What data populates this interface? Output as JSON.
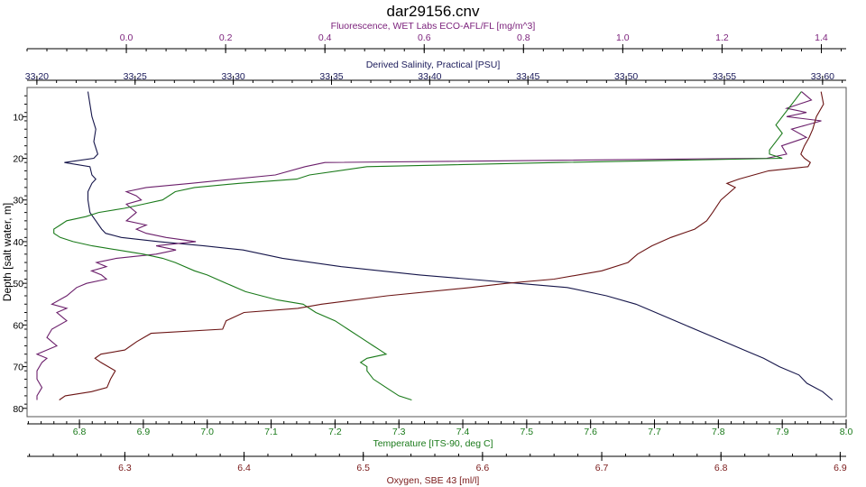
{
  "chart_data": {
    "type": "line",
    "title": "dar29156.cnv",
    "y_axis": {
      "label": "Depth [salt water, m]",
      "range": [
        3,
        82
      ],
      "ticks": [
        10,
        20,
        30,
        40,
        50,
        60,
        70,
        80
      ],
      "inverted": true,
      "color": "#000000"
    },
    "x_axes": [
      {
        "id": "fluor",
        "position": "top-1",
        "label": "Fluorescence, WET Labs ECO-AFL/FL [mg/m^3]",
        "color": "#7a1f7a",
        "range": [
          -0.2,
          1.45
        ],
        "ticks": [
          "0.0",
          "0.2",
          "0.4",
          "0.6",
          "0.8",
          "1.0",
          "1.2",
          "1.4"
        ]
      },
      {
        "id": "sal",
        "position": "top-2",
        "label": "Derived Salinity, Practical [PSU]",
        "color": "#1a1a5a",
        "range": [
          33.195,
          33.612
        ],
        "ticks": [
          "33.20",
          "33.25",
          "33.30",
          "33.35",
          "33.40",
          "33.45",
          "33.50",
          "33.55",
          "33.60"
        ]
      },
      {
        "id": "temp",
        "position": "bottom-1",
        "label": "Temperature [ITS-90, deg C]",
        "color": "#1a7a1a",
        "range": [
          6.718,
          8.0
        ],
        "ticks": [
          "6.8",
          "6.9",
          "7.0",
          "7.1",
          "7.2",
          "7.3",
          "7.4",
          "7.5",
          "7.6",
          "7.7",
          "7.8",
          "7.9",
          "8.0"
        ]
      },
      {
        "id": "oxy",
        "position": "bottom-2",
        "label": "Oxygen, SBE 43 [ml/l]",
        "color": "#7a1a1a",
        "range": [
          6.218,
          6.905
        ],
        "ticks": [
          "6.3",
          "6.4",
          "6.5",
          "6.6",
          "6.7",
          "6.8",
          "6.9"
        ]
      }
    ],
    "grid": false,
    "legend": "none",
    "series": [
      {
        "axis": "sal",
        "color": "#15154a",
        "points": [
          [
            4,
            33.226
          ],
          [
            7,
            33.227
          ],
          [
            10,
            33.228
          ],
          [
            13,
            33.23
          ],
          [
            16,
            33.229
          ],
          [
            19,
            33.231
          ],
          [
            20,
            33.229
          ],
          [
            21,
            33.214
          ],
          [
            22,
            33.227
          ],
          [
            24,
            33.228
          ],
          [
            25,
            33.23
          ],
          [
            26,
            33.228
          ],
          [
            28,
            33.226
          ],
          [
            30,
            33.226
          ],
          [
            33,
            33.227
          ],
          [
            35,
            33.23
          ],
          [
            37,
            33.233
          ],
          [
            38,
            33.235
          ],
          [
            39,
            33.243
          ],
          [
            40,
            33.262
          ],
          [
            41,
            33.285
          ],
          [
            42,
            33.305
          ],
          [
            44,
            33.325
          ],
          [
            46,
            33.355
          ],
          [
            47,
            33.375
          ],
          [
            48,
            33.395
          ],
          [
            49,
            33.42
          ],
          [
            50,
            33.445
          ],
          [
            51,
            33.47
          ],
          [
            53,
            33.49
          ],
          [
            55,
            33.505
          ],
          [
            57,
            33.515
          ],
          [
            60,
            33.53
          ],
          [
            63,
            33.545
          ],
          [
            66,
            33.56
          ],
          [
            68,
            33.57
          ],
          [
            70,
            33.578
          ],
          [
            72,
            33.588
          ],
          [
            74,
            33.592
          ],
          [
            76,
            33.6
          ],
          [
            78,
            33.605
          ]
        ]
      },
      {
        "axis": "fluor",
        "color": "#6b1f6b",
        "points": [
          [
            4,
            1.36
          ],
          [
            6,
            1.38
          ],
          [
            8,
            1.33
          ],
          [
            9,
            1.37
          ],
          [
            10,
            1.33
          ],
          [
            11,
            1.4
          ],
          [
            12,
            1.37
          ],
          [
            13,
            1.34
          ],
          [
            15,
            1.37
          ],
          [
            17,
            1.32
          ],
          [
            19,
            1.33
          ],
          [
            20,
            1.29
          ],
          [
            21,
            0.4
          ],
          [
            22,
            0.36
          ],
          [
            24,
            0.3
          ],
          [
            26,
            0.13
          ],
          [
            27,
            0.04
          ],
          [
            28,
            0.0
          ],
          [
            29,
            0.02
          ],
          [
            30,
            0.03
          ],
          [
            31,
            0.0
          ],
          [
            33,
            0.02
          ],
          [
            35,
            0.0
          ],
          [
            36,
            0.04
          ],
          [
            37,
            0.02
          ],
          [
            38,
            0.04
          ],
          [
            39,
            0.08
          ],
          [
            40,
            0.14
          ],
          [
            41,
            0.06
          ],
          [
            42,
            0.1
          ],
          [
            43,
            0.06
          ],
          [
            44,
            -0.02
          ],
          [
            45,
            -0.06
          ],
          [
            46,
            -0.04
          ],
          [
            47,
            -0.07
          ],
          [
            48,
            -0.05
          ],
          [
            49,
            -0.04
          ],
          [
            50,
            -0.08
          ],
          [
            51,
            -0.1
          ],
          [
            53,
            -0.12
          ],
          [
            55,
            -0.15
          ],
          [
            56,
            -0.12
          ],
          [
            57,
            -0.14
          ],
          [
            59,
            -0.12
          ],
          [
            61,
            -0.15
          ],
          [
            63,
            -0.16
          ],
          [
            65,
            -0.14
          ],
          [
            67,
            -0.18
          ],
          [
            68,
            -0.16
          ],
          [
            69,
            -0.17
          ],
          [
            71,
            -0.18
          ],
          [
            73,
            -0.18
          ],
          [
            75,
            -0.17
          ],
          [
            77,
            -0.18
          ],
          [
            78,
            -0.18
          ]
        ]
      },
      {
        "axis": "temp",
        "color": "#1a7a1a",
        "points": [
          [
            4,
            7.93
          ],
          [
            6,
            7.92
          ],
          [
            8,
            7.91
          ],
          [
            10,
            7.9
          ],
          [
            12,
            7.89
          ],
          [
            14,
            7.9
          ],
          [
            16,
            7.89
          ],
          [
            18,
            7.88
          ],
          [
            19,
            7.88
          ],
          [
            20,
            7.9
          ],
          [
            21,
            7.55
          ],
          [
            22,
            7.25
          ],
          [
            24,
            7.16
          ],
          [
            25,
            7.14
          ],
          [
            26,
            7.05
          ],
          [
            27,
            6.98
          ],
          [
            28,
            6.95
          ],
          [
            30,
            6.93
          ],
          [
            31,
            6.9
          ],
          [
            32,
            6.87
          ],
          [
            33,
            6.83
          ],
          [
            34,
            6.81
          ],
          [
            35,
            6.78
          ],
          [
            36,
            6.77
          ],
          [
            37,
            6.76
          ],
          [
            38,
            6.76
          ],
          [
            39,
            6.77
          ],
          [
            40,
            6.79
          ],
          [
            41,
            6.82
          ],
          [
            42,
            6.86
          ],
          [
            43,
            6.9
          ],
          [
            44,
            6.93
          ],
          [
            45,
            6.95
          ],
          [
            47,
            6.98
          ],
          [
            48,
            7.0
          ],
          [
            50,
            7.03
          ],
          [
            52,
            7.06
          ],
          [
            54,
            7.11
          ],
          [
            55,
            7.15
          ],
          [
            57,
            7.17
          ],
          [
            59,
            7.2
          ],
          [
            61,
            7.22
          ],
          [
            63,
            7.24
          ],
          [
            65,
            7.26
          ],
          [
            66,
            7.27
          ],
          [
            67,
            7.28
          ],
          [
            68,
            7.25
          ],
          [
            69,
            7.24
          ],
          [
            70,
            7.25
          ],
          [
            71,
            7.25
          ],
          [
            73,
            7.26
          ],
          [
            75,
            7.28
          ],
          [
            77,
            7.3
          ],
          [
            78,
            7.32
          ]
        ]
      },
      {
        "axis": "oxy",
        "color": "#6b1414",
        "points": [
          [
            4,
            6.884
          ],
          [
            7,
            6.886
          ],
          [
            10,
            6.88
          ],
          [
            13,
            6.877
          ],
          [
            15,
            6.874
          ],
          [
            17,
            6.87
          ],
          [
            19,
            6.867
          ],
          [
            20,
            6.87
          ],
          [
            21,
            6.875
          ],
          [
            22,
            6.873
          ],
          [
            23,
            6.84
          ],
          [
            25,
            6.815
          ],
          [
            26,
            6.805
          ],
          [
            27,
            6.812
          ],
          [
            30,
            6.8
          ],
          [
            33,
            6.793
          ],
          [
            35,
            6.788
          ],
          [
            37,
            6.778
          ],
          [
            39,
            6.758
          ],
          [
            41,
            6.742
          ],
          [
            43,
            6.73
          ],
          [
            45,
            6.722
          ],
          [
            47,
            6.7
          ],
          [
            49,
            6.66
          ],
          [
            50,
            6.62
          ],
          [
            51,
            6.59
          ],
          [
            53,
            6.52
          ],
          [
            55,
            6.465
          ],
          [
            56,
            6.445
          ],
          [
            57,
            6.4
          ],
          [
            59,
            6.385
          ],
          [
            61,
            6.382
          ],
          [
            62,
            6.322
          ],
          [
            64,
            6.31
          ],
          [
            66,
            6.3
          ],
          [
            67,
            6.28
          ],
          [
            68,
            6.275
          ],
          [
            69,
            6.28
          ],
          [
            71,
            6.292
          ],
          [
            73,
            6.288
          ],
          [
            75,
            6.285
          ],
          [
            76,
            6.272
          ],
          [
            77,
            6.25
          ],
          [
            78,
            6.245
          ]
        ]
      }
    ]
  }
}
